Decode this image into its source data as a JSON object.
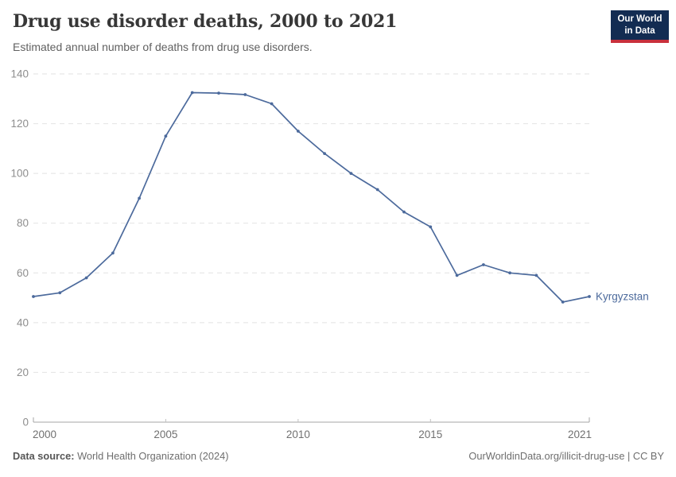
{
  "header": {
    "title": "Drug use disorder deaths, 2000 to 2021",
    "subtitle": "Estimated annual number of deaths from drug use disorders."
  },
  "logo": {
    "line1": "Our World",
    "line2": "in Data",
    "bg_color": "#132c52",
    "accent_color": "#c9303c"
  },
  "chart_data": {
    "type": "line",
    "title": "Drug use disorder deaths, 2000 to 2021",
    "xlabel": "",
    "ylabel": "",
    "xlim": [
      2000,
      2021
    ],
    "ylim": [
      0,
      140
    ],
    "x_ticks": [
      2000,
      2005,
      2010,
      2015,
      2021
    ],
    "y_ticks": [
      0,
      20,
      40,
      60,
      80,
      100,
      120,
      140
    ],
    "grid": "horizontal-dashed",
    "legend_position": "end-of-line",
    "x": [
      2000,
      2001,
      2002,
      2003,
      2004,
      2005,
      2006,
      2007,
      2008,
      2009,
      2010,
      2011,
      2012,
      2013,
      2014,
      2015,
      2016,
      2017,
      2018,
      2019,
      2020,
      2021
    ],
    "series": [
      {
        "name": "Kyrgyzstan",
        "color": "#4c6a9c",
        "values": [
          50.5,
          52,
          58,
          68,
          90,
          115,
          132.5,
          132.3,
          131.7,
          128,
          117,
          108,
          100,
          93.5,
          84.5,
          78.5,
          59,
          63.3,
          60,
          59,
          48.3,
          50.5
        ]
      }
    ]
  },
  "footer": {
    "source_label": "Data source:",
    "source_value": " World Health Organization (2024)",
    "rights": "OurWorldinData.org/illicit-drug-use | CC BY"
  }
}
